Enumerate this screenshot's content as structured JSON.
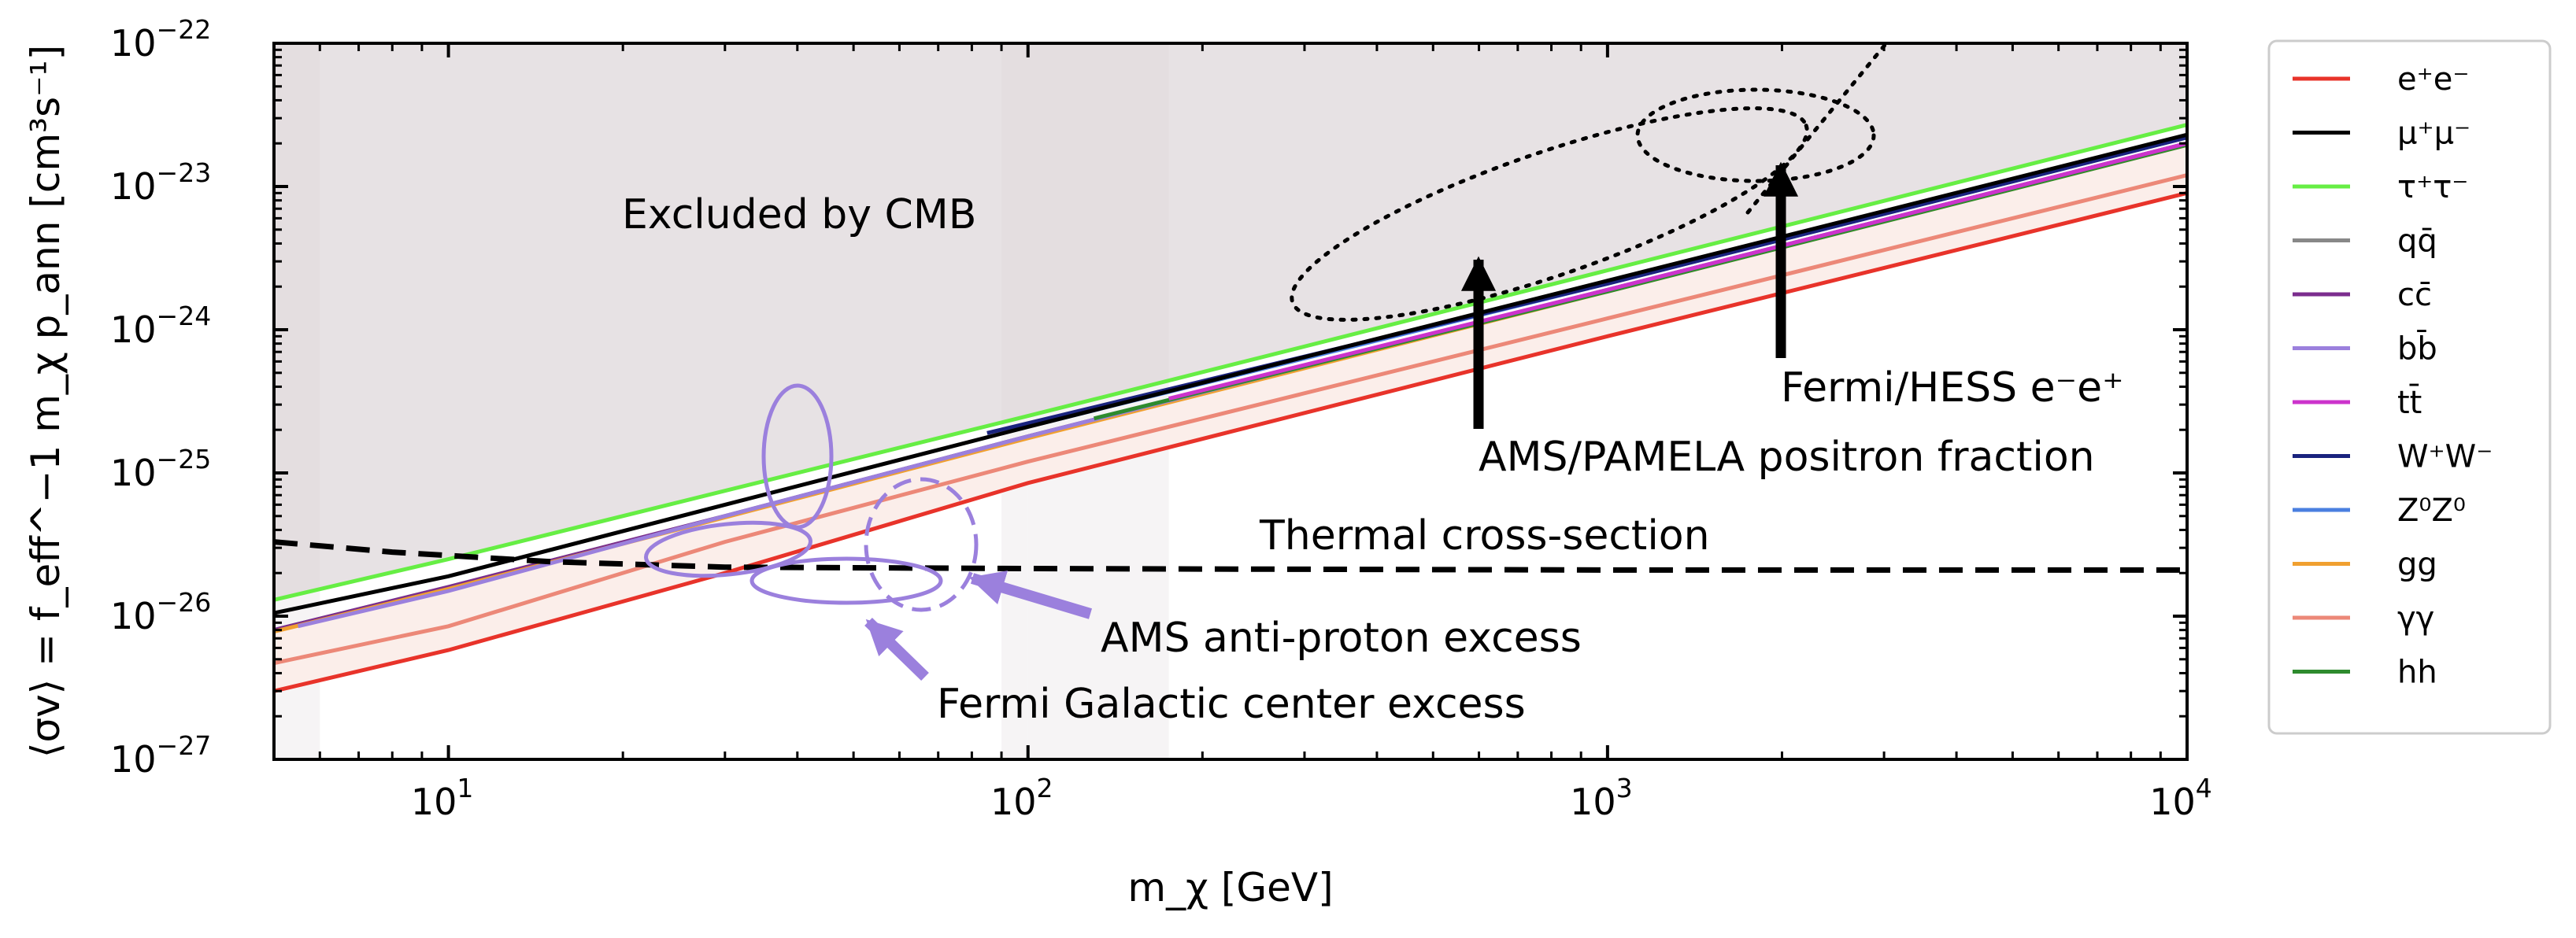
{
  "chart_data": {
    "type": "line",
    "xlabel": "m_χ [GeV]",
    "ylabel": "⟨σv⟩ = f_eff^−1 m_χ p_ann [cm³s⁻¹]",
    "xscale": "log",
    "yscale": "log",
    "xlim": [
      5,
      10000
    ],
    "ylim": [
      1e-27,
      1e-22
    ],
    "x_ticks": [
      {
        "base": "10",
        "exp": "1",
        "value": 10
      },
      {
        "base": "10",
        "exp": "2",
        "value": 100
      },
      {
        "base": "10",
        "exp": "3",
        "value": 1000
      },
      {
        "base": "10",
        "exp": "4",
        "value": 10000
      }
    ],
    "y_ticks": [
      {
        "base": "10",
        "exp": "−27",
        "value": 1e-27
      },
      {
        "base": "10",
        "exp": "−26",
        "value": 1e-26
      },
      {
        "base": "10",
        "exp": "−25",
        "value": 1e-25
      },
      {
        "base": "10",
        "exp": "−24",
        "value": 1e-24
      },
      {
        "base": "10",
        "exp": "−23",
        "value": 1e-23
      },
      {
        "base": "10",
        "exp": "−22",
        "value": 1e-22
      }
    ],
    "legend_position": "outside-right",
    "series": [
      {
        "name": "e⁺e⁻",
        "color": "#e8332a",
        "x": [
          5,
          10,
          30,
          100,
          1000,
          10000
        ],
        "y": [
          3e-27,
          5.8e-27,
          2e-26,
          8.5e-26,
          9e-25,
          9e-24
        ]
      },
      {
        "name": "μ⁺μ⁻",
        "color": "#000000",
        "x": [
          5,
          10,
          30,
          100,
          1000,
          10000
        ],
        "y": [
          1.05e-26,
          1.9e-26,
          6e-26,
          2.1e-25,
          2.2e-24,
          2.3e-23
        ]
      },
      {
        "name": "τ⁺τ⁻",
        "color": "#66ee44",
        "x": [
          5,
          10,
          30,
          100,
          1000,
          10000
        ],
        "y": [
          1.3e-26,
          2.5e-26,
          7.5e-26,
          2.5e-25,
          2.6e-24,
          2.7e-23
        ]
      },
      {
        "name": "qq̄",
        "color": "#888888",
        "x": [
          5,
          10,
          30,
          100,
          1000,
          10000
        ],
        "y": [
          8e-27,
          1.6e-26,
          5e-26,
          1.8e-25,
          1.9e-24,
          2e-23
        ]
      },
      {
        "name": "cc̄",
        "color": "#7b2d8e",
        "x": [
          5,
          10,
          30,
          100,
          1000,
          10000
        ],
        "y": [
          8e-27,
          1.6e-26,
          5e-26,
          1.8e-25,
          1.9e-24,
          2e-23
        ]
      },
      {
        "name": "bb̄",
        "color": "#9b80dd",
        "x": [
          5.5,
          10,
          30,
          100,
          1000,
          10000
        ],
        "y": [
          8.5e-27,
          1.5e-26,
          5e-26,
          1.8e-25,
          1.9e-24,
          2e-23
        ]
      },
      {
        "name": "tt̄",
        "color": "#cc33cc",
        "x": [
          175,
          1000,
          10000
        ],
        "y": [
          3.3e-25,
          1.9e-24,
          2e-23
        ]
      },
      {
        "name": "W⁺W⁻",
        "color": "#1a237e",
        "x": [
          85,
          1000,
          10000
        ],
        "y": [
          1.9e-25,
          2.1e-24,
          2.2e-23
        ]
      },
      {
        "name": "Z⁰Z⁰",
        "color": "#4a7fe0",
        "x": [
          95,
          1000,
          10000
        ],
        "y": [
          2e-25,
          2.1e-24,
          2.2e-23
        ]
      },
      {
        "name": "gg",
        "color": "#f0a030",
        "x": [
          5,
          10,
          30,
          100,
          1000,
          10000
        ],
        "y": [
          7.8e-27,
          1.55e-26,
          4.9e-26,
          1.75e-25,
          1.85e-24,
          1.95e-23
        ]
      },
      {
        "name": "γγ",
        "color": "#ec8878",
        "x": [
          5,
          10,
          30,
          100,
          1000,
          10000
        ],
        "y": [
          4.7e-27,
          8.5e-27,
          3.3e-26,
          1.2e-25,
          1.2e-24,
          1.2e-23
        ]
      },
      {
        "name": "hh",
        "color": "#2e8b2e",
        "x": [
          130,
          1000,
          10000
        ],
        "y": [
          2.4e-25,
          1.85e-24,
          1.95e-23
        ]
      }
    ],
    "thermal_curve": {
      "x": [
        5,
        8,
        15,
        30,
        100,
        1000,
        10000
      ],
      "y": [
        3.3e-26,
        2.8e-26,
        2.4e-26,
        2.2e-26,
        2.15e-26,
        2.1e-26,
        2.1e-26
      ]
    },
    "annotations": {
      "cmb": "Excluded by CMB",
      "thermal": "Thermal cross-section",
      "fermi_hess": "Fermi/HESS e⁻e⁺",
      "ams_pamela": "AMS/PAMELA positron fraction",
      "ams_antiproton": "AMS anti-proton excess",
      "fermi_gc": "Fermi Galactic center excess"
    },
    "arrow_targets": {
      "ams_pamela": {
        "x": 600,
        "y": 3e-24
      },
      "fermi_hess": {
        "x": 2000,
        "y": 1.2e-23
      }
    },
    "regions": {
      "ams_pamela": {
        "x": [
          400,
          1400
        ],
        "y": [
          2.5e-24,
          2e-23
        ]
      },
      "fermi_hess": {
        "x": 1250,
        "y": 1.2e-23
      }
    }
  }
}
